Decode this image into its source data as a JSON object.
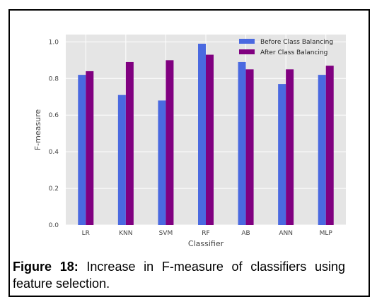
{
  "caption": {
    "label": "Figure 18:",
    "text": "Increase in F-measure of classifiers using feature selection."
  },
  "chart_data": {
    "type": "bar",
    "categories": [
      "LR",
      "KNN",
      "SVM",
      "RF",
      "AB",
      "ANN",
      "MLP"
    ],
    "series": [
      {
        "name": "Before Class Balancing",
        "color": "#4a69e0",
        "values": [
          0.82,
          0.71,
          0.68,
          0.99,
          0.89,
          0.77,
          0.82
        ]
      },
      {
        "name": "After Class Balancing",
        "color": "#800080",
        "values": [
          0.84,
          0.89,
          0.9,
          0.93,
          0.85,
          0.85,
          0.87
        ]
      }
    ],
    "xlabel": "Classifier",
    "ylabel": "F-measure",
    "ylim": [
      0.0,
      1.04
    ],
    "yticks": [
      "0.0",
      "0.2",
      "0.4",
      "0.6",
      "0.8",
      "1.0"
    ],
    "grid": true,
    "background": "#e5e5e5",
    "legend_position": "top-right"
  }
}
